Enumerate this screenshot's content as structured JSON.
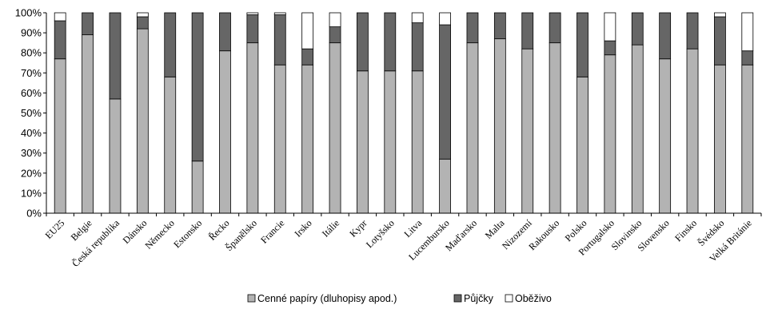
{
  "chart_data": {
    "type": "bar",
    "stacked": true,
    "categories": [
      "EU25",
      "Belgie",
      "Česká republika",
      "Dánsko",
      "Německo",
      "Estonsko",
      "Řecko",
      "Španělsko",
      "Francie",
      "Irsko",
      "Itálie",
      "Kypr",
      "Lotyšsko",
      "Litva",
      "Lucembursko",
      "Maďarsko",
      "Malta",
      "Nizozemí",
      "Rakousko",
      "Polsko",
      "Portugalsko",
      "Slovinsko",
      "Slovensko",
      "Finsko",
      "Švédsko",
      "Velká Británie"
    ],
    "series": [
      {
        "name": "Cenné papíry (dluhopisy apod.)",
        "color": "#b3b3b3",
        "values": [
          77,
          89,
          57,
          92,
          68,
          26,
          81,
          85,
          74,
          74,
          85,
          71,
          71,
          71,
          27,
          85,
          87,
          82,
          85,
          68,
          79,
          84,
          77,
          82,
          74,
          74
        ]
      },
      {
        "name": "Půjčky",
        "color": "#666666",
        "values": [
          19,
          11,
          43,
          6,
          32,
          74,
          19,
          14,
          25,
          8,
          8,
          29,
          29,
          24,
          67,
          15,
          13,
          18,
          15,
          32,
          7,
          16,
          23,
          18,
          24,
          7
        ]
      },
      {
        "name": "Oběživo",
        "color": "#ffffff",
        "values": [
          4,
          0,
          0,
          2,
          0,
          0,
          0,
          1,
          1,
          18,
          7,
          0,
          0,
          5,
          6,
          0,
          0,
          0,
          0,
          0,
          14,
          0,
          0,
          0,
          2,
          19
        ]
      }
    ],
    "ylim": [
      0,
      100
    ],
    "yticks": [
      "0%",
      "10%",
      "20%",
      "30%",
      "40%",
      "50%",
      "60%",
      "70%",
      "80%",
      "90%",
      "100%"
    ],
    "grid": false,
    "legend_position": "bottom"
  }
}
